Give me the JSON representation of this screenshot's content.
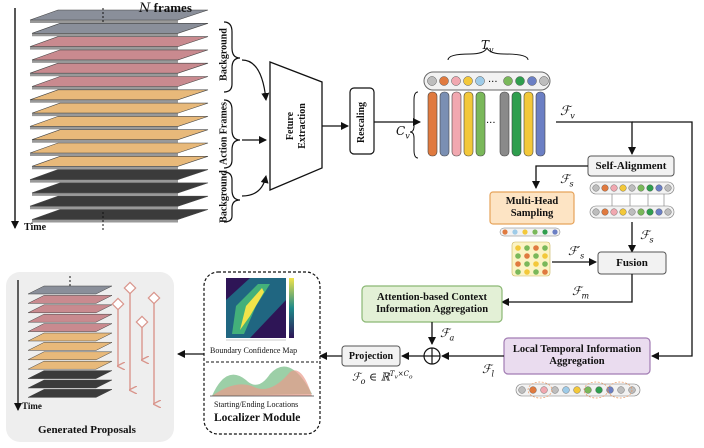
{
  "frames_label": "N frames",
  "time_label": "Time",
  "segments": {
    "background_top": "Background",
    "action_frames": "Action Frames",
    "background_bottom": "Background"
  },
  "feature_extraction": "Feture Extraction",
  "rescaling": "Rescaling",
  "tv_label": "T_v",
  "cv_label": "C_v",
  "fv_label": "F_v",
  "self_alignment": "Self-Alignment",
  "fs_label": "F_s",
  "fs_label2": "F_s",
  "fs_prime_label": "F_s'",
  "multi_head_sampling": "Multi-Head Sampling",
  "fusion": "Fusion",
  "fm_label": "F_m",
  "attention_module": "Attention-based Context Information Aggregation",
  "fa_label": "F_a",
  "local_temporal_module": "Local Temporal Information Aggregation",
  "fl_label": "F_l",
  "projection": "Projection",
  "fo_label": "F_o ∈ ℝ^{T_v × C_o}",
  "boundary_confidence_map": "Boundary Confidence Map",
  "starting_ending_locations": "Starting/Ending Locations",
  "localizer_module": "Localizer Module",
  "generated_proposals": "Generated Proposals",
  "time_label_small": "Time",
  "ellipsis": "···",
  "colors": {
    "feature_columns": [
      "#e07a3f",
      "#7a8fb3",
      "#f1a8b0",
      "#f3c83a",
      "#7ab85a",
      "#8a8a8a",
      "#2f9e4e",
      "#f3c83a",
      "#6b7fc4"
    ],
    "green_box": "#e3f0d6",
    "orange_box": "#fde4c4",
    "purple_box": "#eadcef"
  }
}
